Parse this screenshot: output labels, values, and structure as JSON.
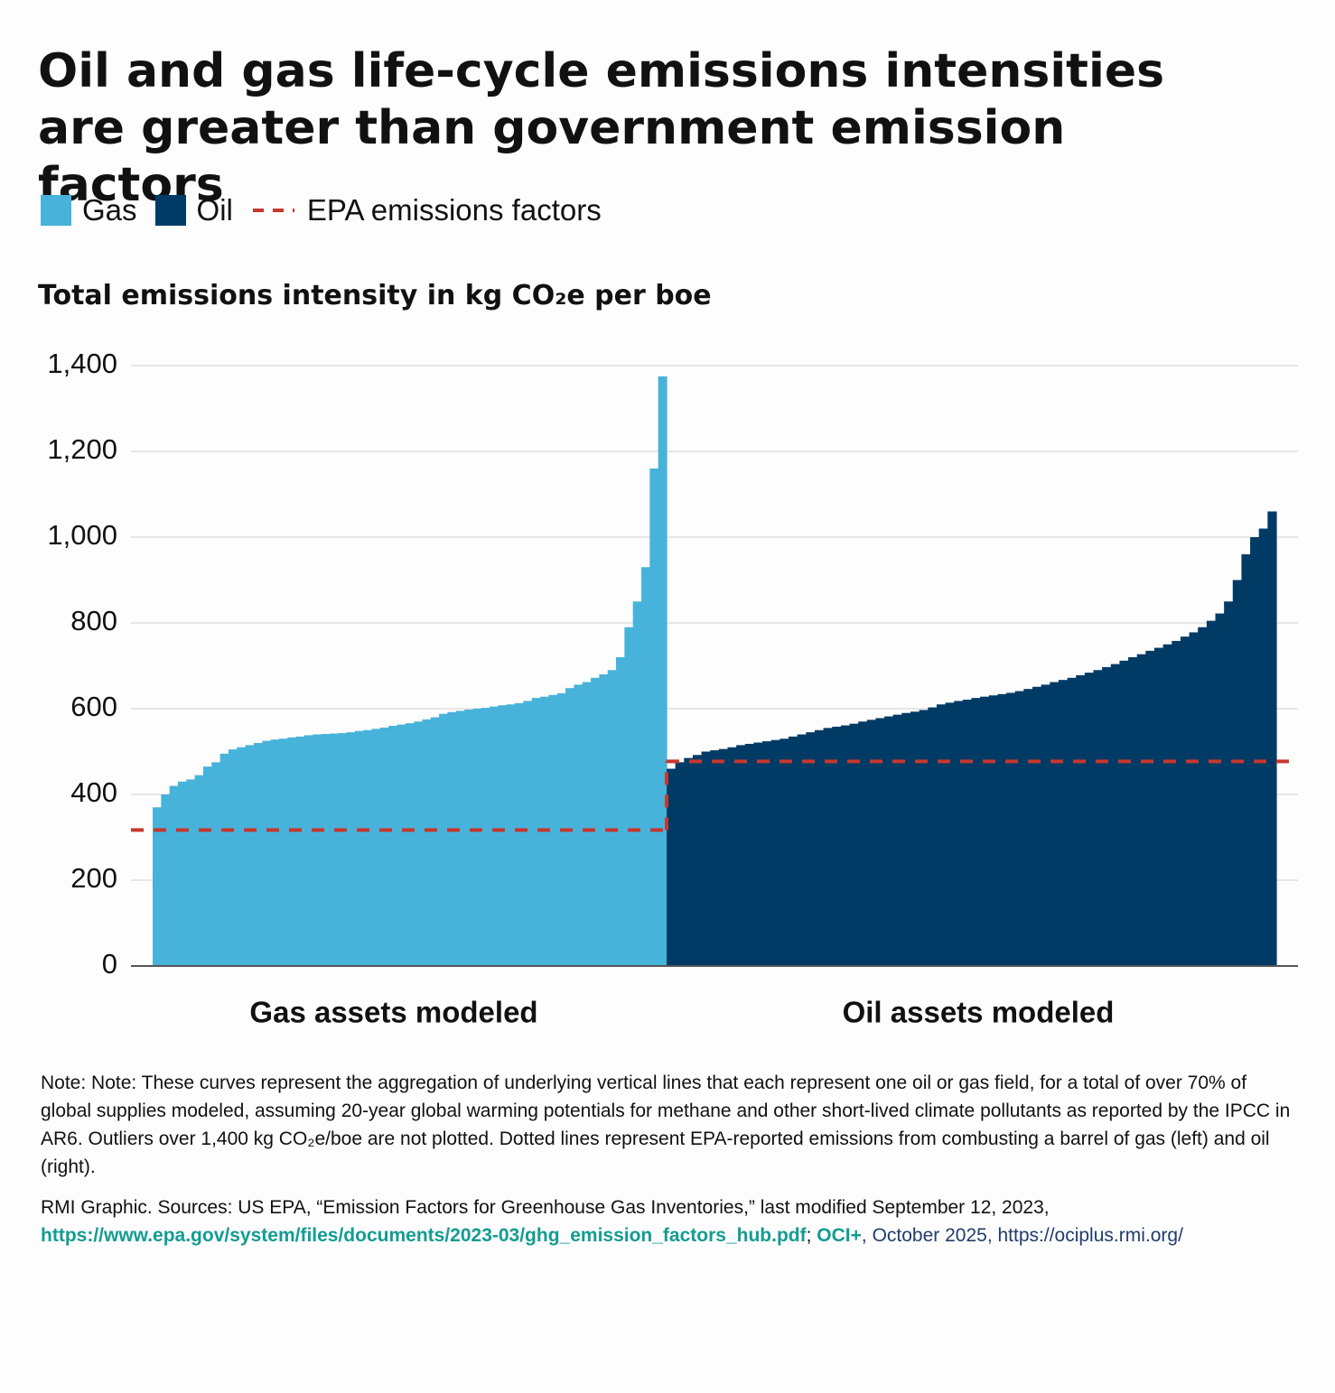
{
  "chart_data": {
    "type": "bar",
    "title": "Oil and gas life-cycle emissions intensities are greater than government emission factors",
    "y_axis_title": "Total emissions intensity in kg CO₂e per boe",
    "ylim": [
      0,
      1400
    ],
    "yticks": [
      0,
      200,
      400,
      600,
      800,
      {
        "value": 1000,
        "label": "1,000"
      },
      {
        "value": 1200,
        "label": "1,200"
      },
      {
        "value": 1400,
        "label": "1,400"
      }
    ],
    "grid": true,
    "series": [
      {
        "name": "Gas",
        "color": "#47b3da",
        "group_label": "Gas assets modeled",
        "values": [
          370,
          400,
          420,
          430,
          435,
          445,
          465,
          475,
          495,
          505,
          510,
          515,
          520,
          525,
          528,
          530,
          533,
          535,
          538,
          540,
          541,
          542,
          543,
          545,
          548,
          550,
          553,
          556,
          560,
          563,
          566,
          570,
          575,
          580,
          588,
          592,
          595,
          598,
          600,
          602,
          605,
          608,
          610,
          613,
          618,
          625,
          628,
          632,
          636,
          648,
          656,
          662,
          672,
          680,
          690,
          720,
          790,
          850,
          930,
          1160,
          1375
        ]
      },
      {
        "name": "Oil",
        "color": "#003b66",
        "group_label": "Oil assets modeled",
        "values": [
          460,
          475,
          485,
          492,
          500,
          503,
          506,
          510,
          515,
          518,
          521,
          524,
          527,
          530,
          535,
          540,
          545,
          550,
          555,
          558,
          561,
          565,
          570,
          574,
          578,
          582,
          586,
          590,
          593,
          597,
          603,
          610,
          614,
          618,
          621,
          625,
          628,
          631,
          634,
          637,
          641,
          646,
          651,
          656,
          662,
          667,
          672,
          678,
          684,
          690,
          697,
          704,
          712,
          720,
          727,
          735,
          742,
          750,
          758,
          768,
          778,
          790,
          805,
          822,
          850,
          900,
          960,
          1000,
          1020,
          1060
        ]
      }
    ],
    "reference_line": {
      "name": "EPA emissions factors",
      "color": "#c8372d",
      "values": [
        317,
        477
      ]
    },
    "note": "Note: Note: These curves represent the aggregation of underlying vertical lines that each represent one oil or gas field, for a total of over 70% of global supplies modeled, assuming 20-year global warming potentials for methane and other short-lived climate pollutants as reported by the IPCC in AR6. Outliers over 1,400 kg CO₂e/boe are not plotted. Dotted lines represent EPA-reported emissions from combusting a barrel of gas (left) and oil (right).",
    "source": [
      "RMI Graphic. Sources: US EPA, “Emission Factors for Greenhouse Gas Inventories,” last modified September 12, 2023,",
      "https://www.epa.gov/system/files/documents/2023-03/ghg_emission_factors_hub.pdf",
      ";",
      "OCI+",
      ", October 2025, https://ociplus.rmi.org/"
    ]
  }
}
